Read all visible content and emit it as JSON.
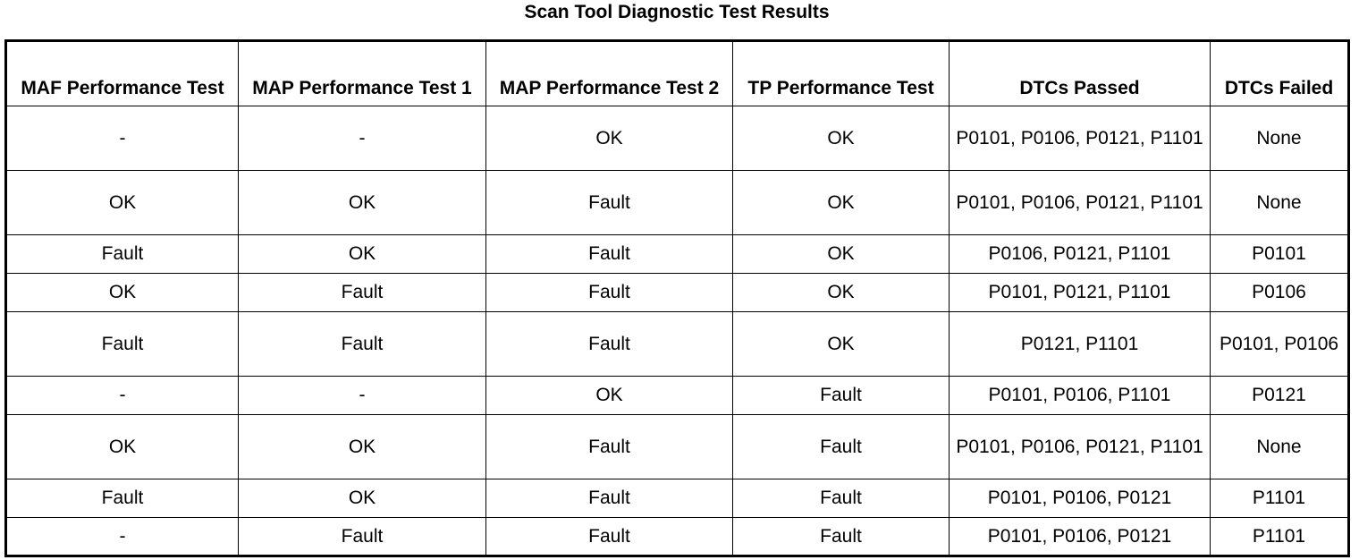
{
  "title": "Scan Tool Diagnostic Test Results",
  "columns": [
    "MAF Performance Test",
    "MAP Performance Test 1",
    "MAP Performance Test 2",
    "TP Performance Test",
    "DTCs Passed",
    "DTCs Failed"
  ],
  "rows": [
    [
      "-",
      "-",
      "OK",
      "OK",
      "P0101, P0106, P0121, P1101",
      "None"
    ],
    [
      "OK",
      "OK",
      "Fault",
      "OK",
      "P0101, P0106, P0121, P1101",
      "None"
    ],
    [
      "Fault",
      "OK",
      "Fault",
      "OK",
      "P0106, P0121, P1101",
      "P0101"
    ],
    [
      "OK",
      "Fault",
      "Fault",
      "OK",
      "P0101, P0121, P1101",
      "P0106"
    ],
    [
      "Fault",
      "Fault",
      "Fault",
      "OK",
      "P0121, P1101",
      "P0101, P0106"
    ],
    [
      "-",
      "-",
      "OK",
      "Fault",
      "P0101, P0106, P1101",
      "P0121"
    ],
    [
      "OK",
      "OK",
      "Fault",
      "Fault",
      "P0101, P0106, P0121, P1101",
      "None"
    ],
    [
      "Fault",
      "OK",
      "Fault",
      "Fault",
      "P0101, P0106, P0121",
      "P1101"
    ],
    [
      "-",
      "Fault",
      "Fault",
      "Fault",
      "P0101, P0106, P0121",
      "P1101"
    ]
  ]
}
